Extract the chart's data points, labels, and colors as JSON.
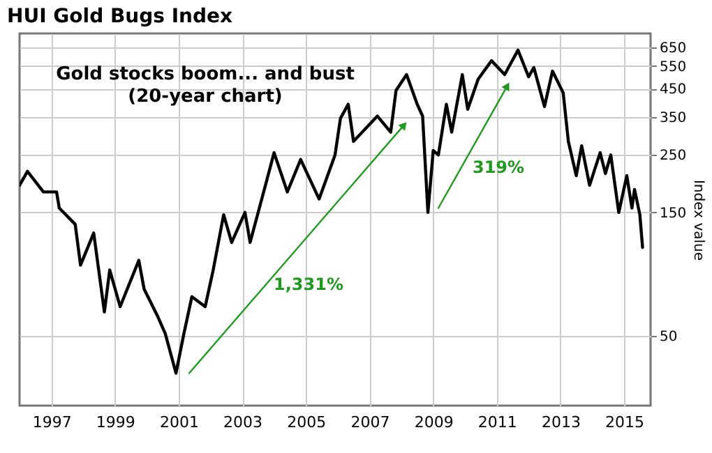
{
  "chart_data": {
    "type": "line",
    "title": "HUI Gold Bugs Index",
    "ylabel": "Index value",
    "log": true,
    "grid": true,
    "annotations": [
      "Gold stocks boom... and bust",
      "(20-year chart)",
      "1,331%",
      "319%"
    ],
    "xlim": [
      "1996-01",
      "2015-11"
    ],
    "xticks": [
      "1997",
      "1999",
      "2001",
      "2003",
      "2005",
      "2007",
      "2009",
      "2011",
      "2013",
      "2015"
    ],
    "ylim": [
      27,
      735
    ],
    "yticks": [
      50,
      150,
      250,
      350,
      450,
      550,
      650
    ],
    "x": [
      "1996-01",
      "1996-04",
      "1996-10",
      "1997-03",
      "1997-04",
      "1997-10",
      "1997-12",
      "1998-05",
      "1998-09",
      "1998-11",
      "1999-03",
      "1999-10",
      "1999-12",
      "2000-05",
      "2000-08",
      "2000-12",
      "2001-03",
      "2001-06",
      "2001-11",
      "2002-02",
      "2002-06",
      "2002-09",
      "2003-02",
      "2003-04",
      "2003-10",
      "2004-01",
      "2004-06",
      "2004-11",
      "2005-06",
      "2005-12",
      "2006-02",
      "2006-05",
      "2006-07",
      "2007-04",
      "2007-09",
      "2007-11",
      "2008-03",
      "2008-07",
      "2008-09",
      "2008-11",
      "2009-01",
      "2009-03",
      "2009-06",
      "2009-08",
      "2009-12",
      "2010-02",
      "2010-06",
      "2010-11",
      "2011-04",
      "2011-09",
      "2012-01",
      "2012-03",
      "2012-07",
      "2012-10",
      "2013-02",
      "2013-04",
      "2013-07",
      "2013-09",
      "2013-12",
      "2014-04",
      "2014-06",
      "2014-08",
      "2014-11",
      "2015-02",
      "2015-04",
      "2015-05",
      "2015-07",
      "2015-08"
    ],
    "series": [
      {
        "color": "#000000",
        "values": [
          191,
          216,
          180,
          180,
          156,
          135,
          94,
          125,
          62,
          90,
          65,
          98,
          76,
          60,
          51,
          36,
          51,
          71,
          65,
          90,
          147,
          115,
          150,
          115,
          195,
          255,
          180,
          240,
          169,
          250,
          346,
          392,
          282,
          353,
          306,
          443,
          510,
          392,
          353,
          150,
          260,
          250,
          392,
          306,
          510,
          375,
          490,
          577,
          510,
          634,
          500,
          543,
          384,
          526,
          434,
          282,
          208,
          271,
          191,
          255,
          212,
          250,
          150,
          208,
          156,
          184,
          147,
          110
        ]
      },
      {
        "type": "line",
        "color": "#1f9a1f",
        "x": [
          "2001-05",
          "2008-02"
        ],
        "values": [
          36,
          326
        ]
      },
      {
        "type": "line",
        "color": "#1f9a1f",
        "x": [
          "2009-03",
          "2011-05"
        ],
        "values": [
          156,
          461
        ]
      }
    ]
  }
}
